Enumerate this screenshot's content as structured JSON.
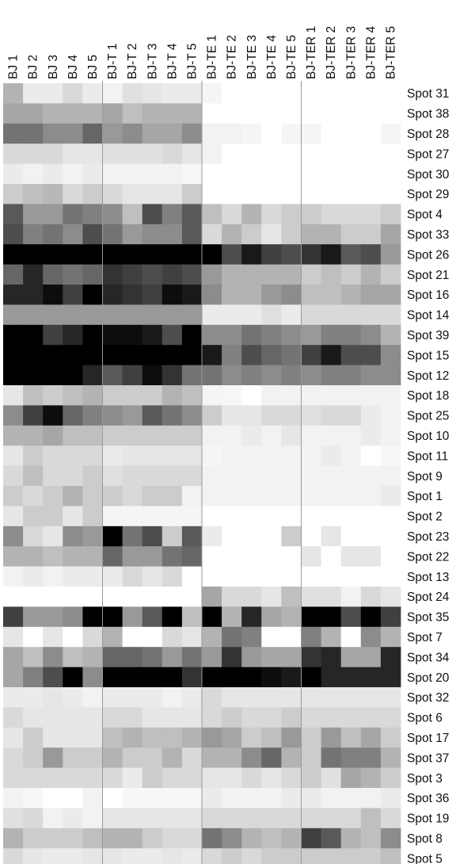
{
  "chart_data": {
    "type": "heatmap",
    "title": "",
    "xlabel": "",
    "ylabel": "",
    "colormap": {
      "low": "#ffffff",
      "high": "#000000"
    },
    "value_range": [
      0,
      1
    ],
    "separator_color": "#9a9a9a",
    "x_categories": [
      "BJ 1",
      "BJ 2",
      "BJ 3",
      "BJ 4",
      "BJ 5",
      "BJ-T 1",
      "BJ-T 2",
      "BJ-T 3",
      "BJ-T 4",
      "BJ-T 5",
      "BJ-TE 1",
      "BJ-TE 2",
      "BJ-TE 3",
      "BJ-TE 4",
      "BJ-TE 5",
      "BJ-TER 1",
      "BJ-TER 2",
      "BJ-TER 3",
      "BJ-TER 4",
      "BJ-TER 5"
    ],
    "y_categories": [
      "Spot 31",
      "Spot 38",
      "Spot 28",
      "Spot 27",
      "Spot 30",
      "Spot 29",
      "Spot 4",
      "Spot 33",
      "Spot 26",
      "Spot 21",
      "Spot 16",
      "Spot 14",
      "Spot 39",
      "Spot 15",
      "Spot 12",
      "Spot 18",
      "Spot 25",
      "Spot 10",
      "Spot 11",
      "Spot 9",
      "Spot 1",
      "Spot 2",
      "Spot 23",
      "Spot 22",
      "Spot 13",
      "Spot 24",
      "Spot 35",
      "Spot 7",
      "Spot 34",
      "Spot 20",
      "Spot 32",
      "Spot 6",
      "Spot 17",
      "Spot 37",
      "Spot 3",
      "Spot 36",
      "Spot 19",
      "Spot 8",
      "Spot 5"
    ],
    "group_boundaries_after_column": [
      5,
      10,
      15
    ],
    "values": [
      [
        0.3,
        0.08,
        0.08,
        0.15,
        0.08,
        0.05,
        0.12,
        0.1,
        0.08,
        0.08,
        0.04,
        0.0,
        0.0,
        0.0,
        0.0,
        0.0,
        0.0,
        0.0,
        0.0,
        0.0
      ],
      [
        0.35,
        0.35,
        0.3,
        0.3,
        0.3,
        0.35,
        0.25,
        0.3,
        0.3,
        0.3,
        0.0,
        0.0,
        0.0,
        0.0,
        0.0,
        0.0,
        0.0,
        0.0,
        0.0,
        0.0
      ],
      [
        0.55,
        0.55,
        0.45,
        0.45,
        0.6,
        0.4,
        0.45,
        0.35,
        0.35,
        0.45,
        0.05,
        0.05,
        0.04,
        0.0,
        0.04,
        0.04,
        0.0,
        0.0,
        0.0,
        0.04
      ],
      [
        0.15,
        0.15,
        0.15,
        0.1,
        0.1,
        0.12,
        0.12,
        0.12,
        0.15,
        0.1,
        0.05,
        0.0,
        0.0,
        0.0,
        0.0,
        0.0,
        0.0,
        0.0,
        0.0,
        0.0
      ],
      [
        0.08,
        0.05,
        0.08,
        0.05,
        0.08,
        0.05,
        0.05,
        0.05,
        0.05,
        0.03,
        0.0,
        0.0,
        0.0,
        0.0,
        0.0,
        0.0,
        0.0,
        0.0,
        0.0,
        0.0
      ],
      [
        0.2,
        0.25,
        0.28,
        0.15,
        0.2,
        0.15,
        0.1,
        0.1,
        0.1,
        0.2,
        0.0,
        0.0,
        0.0,
        0.0,
        0.0,
        0.0,
        0.0,
        0.0,
        0.0,
        0.0
      ],
      [
        0.65,
        0.4,
        0.4,
        0.55,
        0.5,
        0.45,
        0.25,
        0.7,
        0.5,
        0.65,
        0.25,
        0.15,
        0.3,
        0.15,
        0.2,
        0.2,
        0.15,
        0.15,
        0.15,
        0.2
      ],
      [
        0.7,
        0.5,
        0.55,
        0.45,
        0.7,
        0.55,
        0.4,
        0.45,
        0.45,
        0.65,
        0.15,
        0.3,
        0.2,
        0.1,
        0.2,
        0.3,
        0.3,
        0.2,
        0.2,
        0.35
      ],
      [
        1.0,
        1.0,
        1.0,
        1.0,
        1.0,
        1.0,
        1.0,
        1.0,
        1.0,
        1.0,
        1.0,
        0.7,
        0.9,
        0.75,
        0.7,
        0.8,
        0.9,
        0.65,
        0.7,
        0.4
      ],
      [
        0.6,
        0.85,
        0.6,
        0.55,
        0.6,
        0.8,
        0.75,
        0.7,
        0.75,
        0.7,
        0.4,
        0.3,
        0.3,
        0.3,
        0.3,
        0.2,
        0.25,
        0.2,
        0.3,
        0.2
      ],
      [
        0.85,
        0.85,
        0.95,
        0.75,
        1.0,
        0.85,
        0.8,
        0.75,
        0.95,
        0.9,
        0.45,
        0.3,
        0.3,
        0.4,
        0.45,
        0.25,
        0.25,
        0.3,
        0.35,
        0.35
      ],
      [
        0.4,
        0.4,
        0.4,
        0.4,
        0.4,
        0.4,
        0.4,
        0.4,
        0.4,
        0.4,
        0.08,
        0.08,
        0.08,
        0.12,
        0.08,
        0.15,
        0.15,
        0.15,
        0.15,
        0.15
      ],
      [
        1.0,
        1.0,
        0.75,
        0.85,
        1.0,
        0.95,
        0.95,
        0.9,
        0.7,
        1.0,
        0.45,
        0.45,
        0.55,
        0.5,
        0.45,
        0.4,
        0.5,
        0.5,
        0.45,
        0.3
      ],
      [
        1.0,
        1.0,
        1.0,
        1.0,
        1.0,
        1.0,
        1.0,
        1.0,
        1.0,
        1.0,
        0.9,
        0.5,
        0.7,
        0.6,
        0.55,
        0.75,
        0.9,
        0.7,
        0.7,
        0.45
      ],
      [
        1.0,
        1.0,
        1.0,
        1.0,
        0.85,
        0.65,
        0.75,
        0.95,
        0.8,
        0.55,
        0.55,
        0.45,
        0.5,
        0.45,
        0.5,
        0.45,
        0.5,
        0.5,
        0.45,
        0.45
      ],
      [
        0.1,
        0.25,
        0.2,
        0.25,
        0.3,
        0.2,
        0.2,
        0.2,
        0.3,
        0.25,
        0.04,
        0.03,
        0.0,
        0.05,
        0.05,
        0.05,
        0.05,
        0.05,
        0.05,
        0.05
      ],
      [
        0.45,
        0.75,
        0.95,
        0.6,
        0.5,
        0.45,
        0.4,
        0.65,
        0.55,
        0.45,
        0.2,
        0.1,
        0.1,
        0.15,
        0.15,
        0.12,
        0.15,
        0.15,
        0.08,
        0.05
      ],
      [
        0.3,
        0.3,
        0.35,
        0.25,
        0.25,
        0.2,
        0.2,
        0.2,
        0.2,
        0.2,
        0.05,
        0.05,
        0.08,
        0.05,
        0.1,
        0.05,
        0.05,
        0.05,
        0.08,
        0.05
      ],
      [
        0.1,
        0.2,
        0.15,
        0.15,
        0.15,
        0.08,
        0.1,
        0.1,
        0.1,
        0.1,
        0.04,
        0.05,
        0.05,
        0.05,
        0.05,
        0.05,
        0.08,
        0.05,
        0.0,
        0.03
      ],
      [
        0.15,
        0.25,
        0.15,
        0.15,
        0.2,
        0.12,
        0.15,
        0.15,
        0.15,
        0.15,
        0.05,
        0.05,
        0.05,
        0.05,
        0.05,
        0.05,
        0.05,
        0.05,
        0.05,
        0.05
      ],
      [
        0.2,
        0.15,
        0.2,
        0.3,
        0.2,
        0.2,
        0.15,
        0.2,
        0.2,
        0.05,
        0.05,
        0.05,
        0.05,
        0.05,
        0.05,
        0.05,
        0.05,
        0.05,
        0.05,
        0.08
      ],
      [
        0.1,
        0.2,
        0.2,
        0.1,
        0.2,
        0.04,
        0.04,
        0.04,
        0.04,
        0.04,
        0.0,
        0.0,
        0.0,
        0.0,
        0.0,
        0.0,
        0.0,
        0.0,
        0.0,
        0.0
      ],
      [
        0.45,
        0.15,
        0.1,
        0.45,
        0.4,
        1.0,
        0.55,
        0.7,
        0.2,
        0.65,
        0.08,
        0.0,
        0.0,
        0.0,
        0.2,
        0.0,
        0.1,
        0.0,
        0.0,
        0.0
      ],
      [
        0.3,
        0.3,
        0.25,
        0.3,
        0.3,
        0.6,
        0.4,
        0.4,
        0.55,
        0.6,
        0.0,
        0.0,
        0.0,
        0.0,
        0.0,
        0.1,
        0.0,
        0.1,
        0.1,
        0.0
      ],
      [
        0.05,
        0.08,
        0.05,
        0.08,
        0.08,
        0.08,
        0.15,
        0.1,
        0.15,
        0.0,
        0.0,
        0.0,
        0.0,
        0.0,
        0.0,
        0.0,
        0.0,
        0.0,
        0.0,
        0.0
      ],
      [
        0.0,
        0.0,
        0.0,
        0.0,
        0.0,
        0.0,
        0.0,
        0.0,
        0.0,
        0.0,
        0.35,
        0.15,
        0.15,
        0.1,
        0.25,
        0.12,
        0.12,
        0.05,
        0.15,
        0.1
      ],
      [
        0.75,
        0.4,
        0.4,
        0.45,
        1.0,
        1.0,
        0.4,
        0.65,
        1.0,
        0.25,
        1.0,
        0.3,
        0.85,
        0.35,
        0.3,
        1.0,
        1.0,
        0.7,
        1.0,
        0.75
      ],
      [
        0.1,
        0.0,
        0.1,
        0.0,
        0.15,
        0.3,
        0.0,
        0.0,
        0.15,
        0.1,
        0.3,
        0.55,
        0.5,
        0.0,
        0.0,
        0.5,
        0.3,
        0.0,
        0.45,
        0.3
      ],
      [
        0.35,
        0.25,
        0.45,
        0.25,
        0.3,
        0.6,
        0.6,
        0.55,
        0.4,
        0.55,
        0.4,
        0.8,
        0.4,
        0.35,
        0.35,
        0.8,
        0.85,
        0.35,
        0.35,
        0.85
      ],
      [
        0.35,
        0.5,
        0.7,
        1.0,
        0.45,
        1.0,
        1.0,
        1.0,
        1.0,
        0.8,
        1.0,
        1.0,
        1.0,
        0.95,
        0.9,
        1.0,
        0.85,
        0.85,
        0.85,
        0.85
      ],
      [
        0.08,
        0.08,
        0.1,
        0.08,
        0.05,
        0.08,
        0.08,
        0.08,
        0.05,
        0.08,
        0.15,
        0.1,
        0.1,
        0.1,
        0.1,
        0.1,
        0.1,
        0.1,
        0.1,
        0.1
      ],
      [
        0.15,
        0.1,
        0.1,
        0.1,
        0.1,
        0.15,
        0.15,
        0.1,
        0.1,
        0.1,
        0.15,
        0.2,
        0.15,
        0.15,
        0.2,
        0.15,
        0.15,
        0.15,
        0.15,
        0.15
      ],
      [
        0.1,
        0.2,
        0.1,
        0.1,
        0.1,
        0.25,
        0.3,
        0.25,
        0.25,
        0.3,
        0.4,
        0.35,
        0.2,
        0.25,
        0.4,
        0.2,
        0.4,
        0.25,
        0.35,
        0.2
      ],
      [
        0.15,
        0.2,
        0.4,
        0.2,
        0.2,
        0.3,
        0.2,
        0.2,
        0.3,
        0.15,
        0.3,
        0.3,
        0.45,
        0.6,
        0.3,
        0.2,
        0.55,
        0.5,
        0.5,
        0.3
      ],
      [
        0.15,
        0.15,
        0.15,
        0.15,
        0.15,
        0.15,
        0.08,
        0.2,
        0.15,
        0.15,
        0.1,
        0.1,
        0.15,
        0.1,
        0.15,
        0.2,
        0.12,
        0.35,
        0.3,
        0.2
      ],
      [
        0.05,
        0.03,
        0.0,
        0.0,
        0.05,
        0.0,
        0.03,
        0.03,
        0.03,
        0.03,
        0.08,
        0.05,
        0.05,
        0.05,
        0.08,
        0.08,
        0.05,
        0.05,
        0.05,
        0.08
      ],
      [
        0.12,
        0.15,
        0.05,
        0.08,
        0.05,
        0.1,
        0.1,
        0.1,
        0.1,
        0.1,
        0.15,
        0.15,
        0.15,
        0.15,
        0.15,
        0.15,
        0.15,
        0.15,
        0.25,
        0.15
      ],
      [
        0.3,
        0.2,
        0.2,
        0.2,
        0.25,
        0.3,
        0.3,
        0.2,
        0.15,
        0.15,
        0.55,
        0.45,
        0.3,
        0.25,
        0.3,
        0.75,
        0.65,
        0.3,
        0.25,
        0.45
      ],
      [
        0.15,
        0.1,
        0.08,
        0.08,
        0.1,
        0.1,
        0.08,
        0.08,
        0.1,
        0.08,
        0.15,
        0.2,
        0.15,
        0.2,
        0.2,
        0.2,
        0.2,
        0.2,
        0.2,
        0.25
      ]
    ]
  }
}
